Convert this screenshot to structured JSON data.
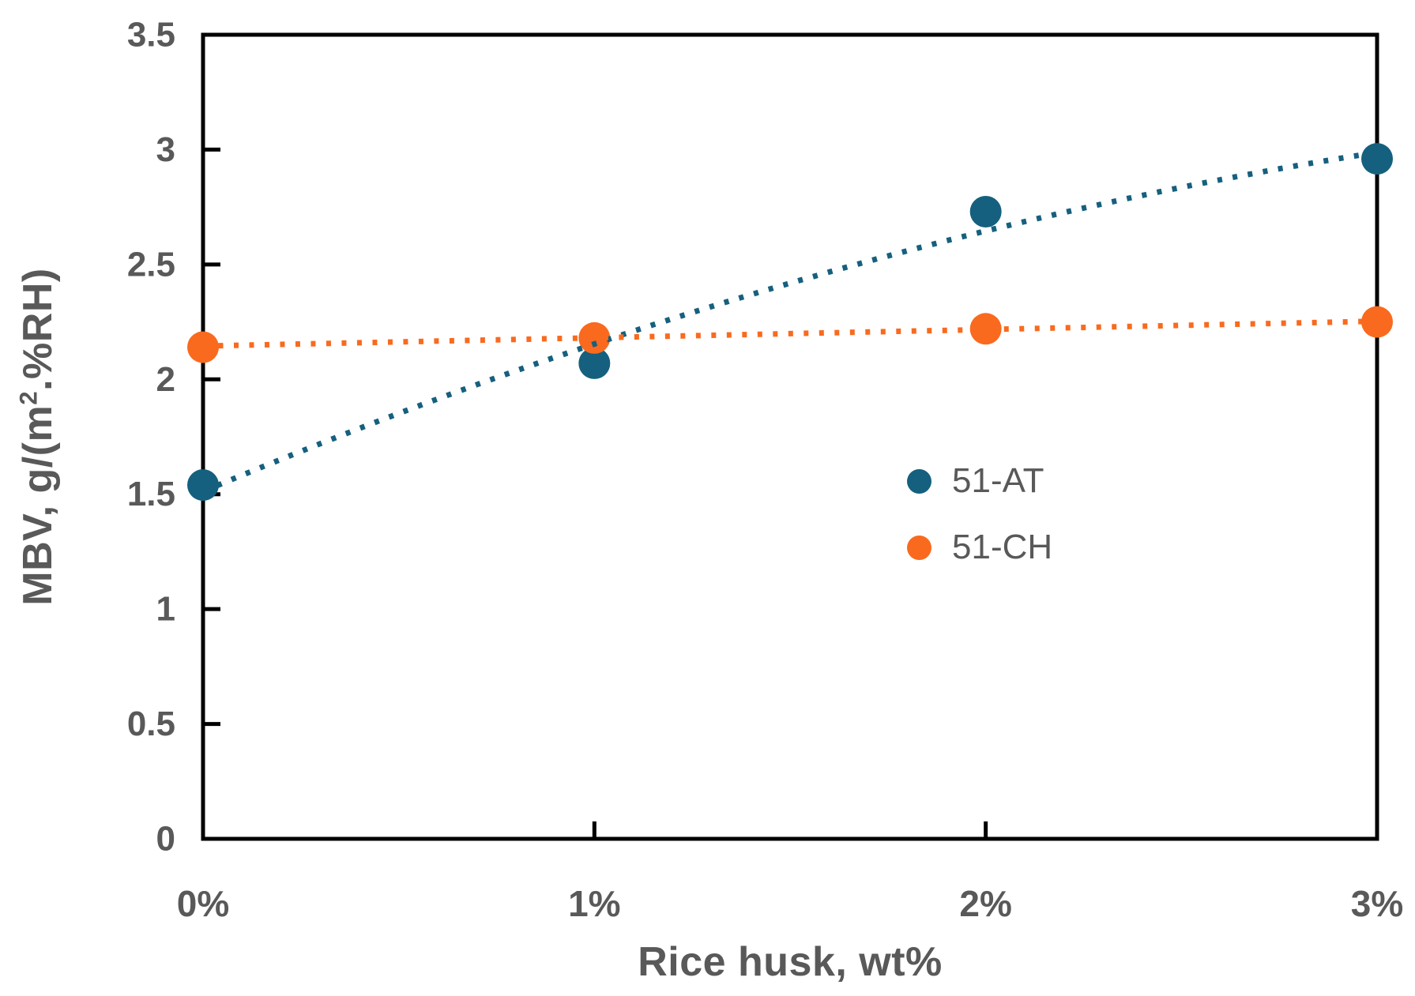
{
  "chart_data": {
    "type": "scatter",
    "title": "",
    "xlabel": "Rice husk, wt%",
    "ylabel": "MBV, g/(m².%RH)",
    "ylabel_parts": {
      "prefix": "MBV, g/(m",
      "sup": "2",
      "suffix": ".%RH)"
    },
    "categories": [
      "0%",
      "1%",
      "2%",
      "3%"
    ],
    "x": [
      0,
      1,
      2,
      3
    ],
    "xlim": [
      0,
      3
    ],
    "ylim": [
      0,
      3.5
    ],
    "y_ticks": [
      0,
      0.5,
      1,
      1.5,
      2,
      2.5,
      3,
      3.5
    ],
    "y_tick_labels": [
      "0",
      "0.5",
      "1",
      "1.5",
      "2",
      "2.5",
      "3",
      "3.5"
    ],
    "grid": false,
    "legend_position": "center-right",
    "axis_color": "#000000",
    "label_color": "#595959",
    "series": [
      {
        "name": "51-AT",
        "color": "#15607E",
        "marker": "circle",
        "values": [
          1.54,
          2.07,
          2.73,
          2.96
        ],
        "trendline": {
          "type": "quadratic",
          "coeffs": [
            1.512,
            0.717,
            -0.075
          ],
          "style": "dotted"
        }
      },
      {
        "name": "51-CH",
        "color": "#F96A1E",
        "marker": "circle",
        "values": [
          2.14,
          2.18,
          2.22,
          2.25
        ],
        "trendline": {
          "type": "linear",
          "coeffs": [
            2.145,
            0.036
          ],
          "style": "dotted"
        }
      }
    ]
  }
}
